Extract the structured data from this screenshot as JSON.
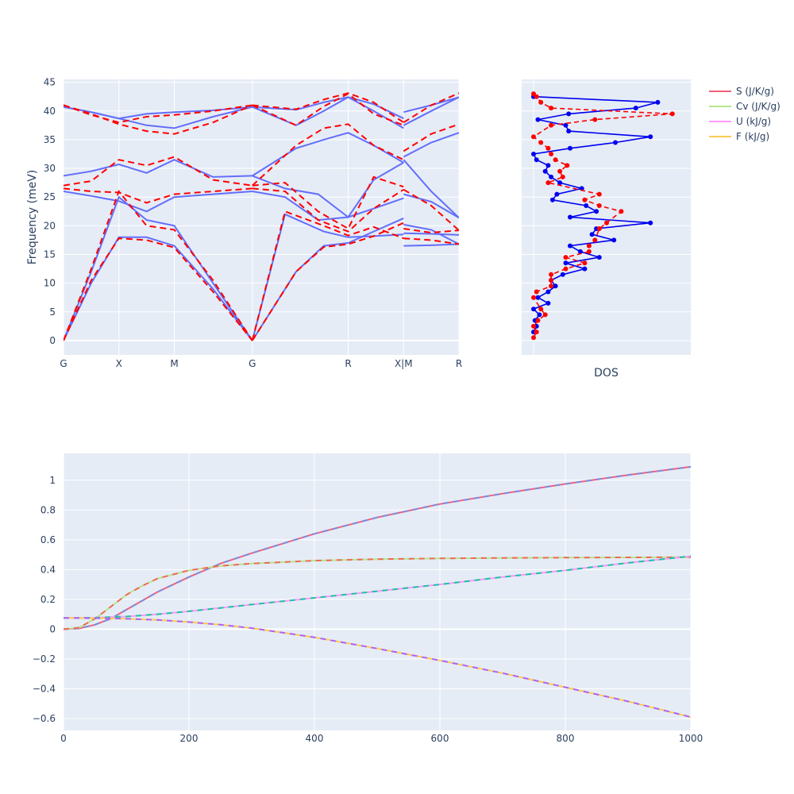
{
  "chart_data": [
    {
      "id": "bands",
      "type": "line",
      "ylabel": "Frequency (meV)",
      "xlabel": "",
      "ylim": [
        -2.5,
        45.5
      ],
      "yticks": [
        0,
        5,
        10,
        15,
        20,
        25,
        30,
        35,
        40,
        45
      ],
      "xticks": [
        {
          "label": "G",
          "x": 0
        },
        {
          "label": "X",
          "x": 1
        },
        {
          "label": "M",
          "x": 2
        },
        {
          "label": "G",
          "x": 3.41
        },
        {
          "label": "R",
          "x": 5.14
        },
        {
          "label": "X|M",
          "x": 6.14
        },
        {
          "label": "R",
          "x": 7.14
        }
      ],
      "grid": true,
      "series_styles": [
        {
          "color": "#636efa",
          "dash": "solid"
        },
        {
          "color": "#ff0000",
          "dash": "dashed"
        }
      ],
      "series": [
        {
          "x": [
            0,
            0.5,
            1,
            1.5,
            2,
            2.7,
            3.41
          ],
          "y": [
            0,
            10,
            18,
            18,
            16.5,
            9,
            0
          ]
        },
        {
          "x": [
            0,
            0.5,
            1,
            1.5,
            2,
            2.7,
            3.41
          ],
          "y": [
            0,
            12,
            25,
            21,
            20,
            10,
            0
          ]
        },
        {
          "x": [
            3.41,
            4.2,
            4.7,
            5.14,
            5.6,
            6.14
          ],
          "y": [
            0,
            12,
            16.5,
            17,
            19,
            21.3
          ]
        },
        {
          "x": [
            3.41,
            4.0,
            4.7,
            5.14,
            5.6,
            6.14
          ],
          "y": [
            0,
            22,
            19,
            18,
            18.2,
            18.5
          ]
        },
        {
          "x": [
            0,
            0.5,
            1,
            1.5,
            2,
            2.7,
            3.41
          ],
          "y": [
            26,
            25.2,
            24.3,
            22.5,
            25,
            25.5,
            26
          ]
        },
        {
          "x": [
            0,
            0.5,
            1,
            1.5,
            2,
            2.7,
            3.41
          ],
          "y": [
            28.7,
            29.5,
            30.7,
            29.2,
            31.5,
            28.5,
            28.7
          ]
        },
        {
          "x": [
            3.41,
            4.0,
            4.6,
            5.14,
            5.6,
            6.14
          ],
          "y": [
            26,
            25,
            21,
            21.5,
            23,
            24.8
          ]
        },
        {
          "x": [
            3.41,
            4.0,
            4.6,
            5.14,
            5.6,
            6.14
          ],
          "y": [
            28.7,
            26.5,
            25.5,
            21.5,
            28,
            31
          ]
        },
        {
          "x": [
            3.41,
            4.2,
            4.7,
            5.14,
            5.6,
            6.14
          ],
          "y": [
            28.7,
            33.5,
            35,
            36.2,
            34,
            31
          ]
        },
        {
          "x": [
            0,
            0.5,
            1,
            1.5,
            2,
            2.7,
            3.41
          ],
          "y": [
            40.7,
            39.8,
            38.7,
            37.5,
            37,
            39,
            40.7
          ]
        },
        {
          "x": [
            0,
            0.5,
            1,
            1.5,
            2,
            2.7,
            3.41
          ],
          "y": [
            40.7,
            39.8,
            38.7,
            39.5,
            39.8,
            40.1,
            40.7
          ]
        },
        {
          "x": [
            3.41,
            4.2,
            4.7,
            5.14,
            5.6,
            6.14
          ],
          "y": [
            40.7,
            37.5,
            40,
            42.4,
            40,
            37
          ]
        },
        {
          "x": [
            3.41,
            4.2,
            4.7,
            5.14,
            5.6,
            6.14
          ],
          "y": [
            40.7,
            40.2,
            41.5,
            42.4,
            41.2,
            38.7
          ]
        },
        {
          "x": [
            6.14,
            6.64,
            7.14
          ],
          "y": [
            16.5,
            16.6,
            16.8
          ]
        },
        {
          "x": [
            6.14,
            6.64,
            7.14
          ],
          "y": [
            18.7,
            18.6,
            18.4
          ]
        },
        {
          "x": [
            6.14,
            6.64,
            7.14
          ],
          "y": [
            20.2,
            19.3,
            16.8
          ]
        },
        {
          "x": [
            6.14,
            6.64,
            7.14
          ],
          "y": [
            25.5,
            24.2,
            21.4
          ]
        },
        {
          "x": [
            6.14,
            6.64,
            7.14
          ],
          "y": [
            31.5,
            26,
            21.4
          ]
        },
        {
          "x": [
            6.14,
            6.64,
            7.14
          ],
          "y": [
            32,
            34.5,
            36.2
          ]
        },
        {
          "x": [
            6.14,
            6.64,
            7.14
          ],
          "y": [
            37.5,
            40,
            42.4
          ]
        },
        {
          "x": [
            6.14,
            6.64,
            7.14
          ],
          "y": [
            39.8,
            41,
            42.4
          ]
        },
        {
          "x": [
            0,
            0.5,
            1,
            1.5,
            2,
            2.7,
            3.41
          ],
          "y": [
            0,
            10.5,
            17.8,
            17.5,
            16.2,
            8.5,
            0
          ],
          "series": 1
        },
        {
          "x": [
            0,
            0.5,
            1,
            1.5,
            2,
            2.7,
            3.41
          ],
          "y": [
            0,
            12.5,
            26,
            20,
            19.3,
            10.5,
            0
          ],
          "series": 1
        },
        {
          "x": [
            3.41,
            4.2,
            4.7,
            5.14,
            5.6,
            6.14
          ],
          "y": [
            0,
            12,
            16.3,
            16.8,
            18.2,
            20.5
          ],
          "series": 1
        },
        {
          "x": [
            3.41,
            4.0,
            4.7,
            5.14,
            5.6,
            6.14
          ],
          "y": [
            0,
            22.5,
            20,
            18.3,
            19.8,
            17.8
          ],
          "series": 1
        },
        {
          "x": [
            0,
            0.5,
            1,
            1.5,
            2,
            2.7,
            3.41
          ],
          "y": [
            26.5,
            26,
            25.8,
            24,
            25.5,
            26,
            26.5
          ],
          "series": 1
        },
        {
          "x": [
            0,
            0.5,
            1,
            1.5,
            2,
            2.7,
            3.41
          ],
          "y": [
            27,
            27.8,
            31.5,
            30.5,
            32,
            28,
            27
          ],
          "series": 1
        },
        {
          "x": [
            3.41,
            4.0,
            4.6,
            5.14,
            5.6,
            6.14
          ],
          "y": [
            26.5,
            26,
            21,
            19,
            23,
            26.3
          ],
          "series": 1
        },
        {
          "x": [
            3.41,
            4.0,
            4.6,
            5.14,
            5.6,
            6.14
          ],
          "y": [
            27,
            27.5,
            22.5,
            19.5,
            28.5,
            26.8
          ],
          "series": 1
        },
        {
          "x": [
            3.41,
            4.2,
            4.7,
            5.14,
            5.6,
            6.14
          ],
          "y": [
            27,
            34,
            37,
            37.7,
            34,
            31.5
          ],
          "series": 1
        },
        {
          "x": [
            0,
            0.5,
            1,
            1.5,
            2,
            2.7,
            3.41
          ],
          "y": [
            41,
            39.5,
            37.7,
            36.5,
            36,
            38,
            41
          ],
          "series": 1
        },
        {
          "x": [
            0,
            0.5,
            1,
            1.5,
            2,
            2.7,
            3.41
          ],
          "y": [
            41,
            39.3,
            38,
            39,
            39.3,
            40,
            41
          ],
          "series": 1
        },
        {
          "x": [
            3.41,
            4.2,
            4.7,
            5.14,
            5.6,
            6.14
          ],
          "y": [
            41,
            37.5,
            40.8,
            43,
            39.5,
            37.5
          ],
          "series": 1
        },
        {
          "x": [
            3.41,
            4.2,
            4.7,
            5.14,
            5.6,
            6.14
          ],
          "y": [
            41,
            40.3,
            42,
            43.1,
            41.5,
            38
          ],
          "series": 1
        },
        {
          "x": [
            6.14,
            6.64,
            7.14
          ],
          "y": [
            17.8,
            17.5,
            16.8
          ],
          "series": 1
        },
        {
          "x": [
            6.14,
            6.64,
            7.14
          ],
          "y": [
            19.5,
            18.8,
            19.2
          ],
          "series": 1
        },
        {
          "x": [
            6.14,
            6.64,
            7.14
          ],
          "y": [
            26.3,
            23.5,
            19.2
          ],
          "series": 1
        },
        {
          "x": [
            6.14,
            6.64,
            7.14
          ],
          "y": [
            33,
            36,
            37.7
          ],
          "series": 1
        },
        {
          "x": [
            6.14,
            6.64,
            7.14
          ],
          "y": [
            38,
            41,
            43.1
          ],
          "series": 1
        }
      ]
    },
    {
      "id": "dos",
      "type": "line",
      "xlabel": "DOS",
      "ylim": [
        -2.5,
        45.5
      ],
      "markers": true,
      "series_styles": [
        {
          "color": "#0000ee",
          "dash": "solid"
        },
        {
          "color": "#ff0000",
          "dash": "dashed"
        }
      ],
      "series": [
        {
          "dos": [
            0.0,
            0.02,
            0.01,
            0.04,
            0.0,
            0.1,
            0.03,
            0.1,
            0.15,
            0.12,
            0.2,
            0.35,
            0.22,
            0.45,
            0.32,
            0.25,
            0.55,
            0.4,
            0.43,
            0.8,
            0.25,
            0.43,
            0.36,
            0.13,
            0.16,
            0.33,
            0.18,
            0.12,
            0.08,
            0.1,
            0.02,
            0.0,
            0.25,
            0.56,
            0.8,
            0.24,
            0.22,
            0.03,
            0.24,
            0.7,
            0.85,
            0.0
          ],
          "y": [
            1.5,
            2.5,
            3.5,
            4.5,
            5.5,
            6.5,
            7.5,
            8.5,
            9.5,
            10.5,
            11.5,
            12.5,
            13.5,
            14.5,
            15.5,
            16.5,
            17.5,
            18.5,
            19.5,
            20.5,
            21.5,
            22.5,
            23.5,
            24.5,
            25.5,
            26.5,
            27.5,
            28.5,
            29.5,
            30.5,
            31.5,
            32.5,
            33.5,
            34.5,
            35.5,
            36.5,
            37.5,
            38.5,
            39.5,
            40.5,
            41.5,
            42.5
          ]
        },
        {
          "dos": [
            0.0,
            0.02,
            0.0,
            0.03,
            0.08,
            0.05,
            0.0,
            0.02,
            0.12,
            0.12,
            0.12,
            0.22,
            0.35,
            0.22,
            0.38,
            0.38,
            0.42,
            0.45,
            0.5,
            0.6,
            0.45,
            0.35,
            0.45,
            0.1,
            0.2,
            0.18,
            0.23,
            0.15,
            0.12,
            0.1,
            0.05,
            0.0,
            0.12,
            0.42,
            0.95,
            0.12,
            0.05,
            0.02,
            0.0
          ],
          "y": [
            0.5,
            1.5,
            2.5,
            3.5,
            4.5,
            5.5,
            7.5,
            8.5,
            9.5,
            10.5,
            11.5,
            12.5,
            13.5,
            14.5,
            15.5,
            16.5,
            17.5,
            19.5,
            20.5,
            22.5,
            23.5,
            24.5,
            25.5,
            27.5,
            28.5,
            29.5,
            30.5,
            31.5,
            32.5,
            33.5,
            34.5,
            35.5,
            37.5,
            38.5,
            39.5,
            40.5,
            41.5,
            42.5,
            43.0
          ]
        }
      ]
    },
    {
      "id": "thermo",
      "type": "line",
      "xlim": [
        0,
        1000
      ],
      "ylim": [
        -0.68,
        1.18
      ],
      "xticks": [
        0,
        200,
        400,
        600,
        800,
        1000
      ],
      "yticks": [
        -0.6,
        -0.4,
        -0.2,
        0,
        0.2,
        0.4,
        0.6,
        0.8,
        1
      ],
      "grid": true,
      "legend_placement": "top-right",
      "series": [
        {
          "name": "S (J/K/g)",
          "color": "#f2607b",
          "overlay": "#7b8cdf",
          "x": [
            0,
            25,
            50,
            75,
            100,
            150,
            200,
            250,
            300,
            400,
            500,
            600,
            700,
            800,
            900,
            1000
          ],
          "y": [
            0,
            0.005,
            0.03,
            0.07,
            0.13,
            0.25,
            0.35,
            0.44,
            0.51,
            0.64,
            0.75,
            0.84,
            0.91,
            0.975,
            1.035,
            1.09
          ]
        },
        {
          "name": "Cv (J/K/g)",
          "color": "#b5e691",
          "overlay": "#ef6a55",
          "x": [
            0,
            25,
            50,
            75,
            100,
            125,
            150,
            200,
            250,
            300,
            400,
            500,
            600,
            700,
            800,
            900,
            1000
          ],
          "y": [
            0,
            0.01,
            0.07,
            0.15,
            0.23,
            0.29,
            0.34,
            0.395,
            0.425,
            0.44,
            0.46,
            0.47,
            0.475,
            0.478,
            0.48,
            0.482,
            0.483
          ]
        },
        {
          "name": "U (kJ/g)",
          "color": "#ff97ff",
          "overlay": "#1cc3a0",
          "x": [
            0,
            50,
            100,
            150,
            200,
            300,
            400,
            500,
            600,
            700,
            800,
            900,
            1000
          ],
          "y": [
            0.075,
            0.077,
            0.085,
            0.1,
            0.12,
            0.165,
            0.21,
            0.255,
            0.3,
            0.35,
            0.395,
            0.445,
            0.49
          ]
        },
        {
          "name": "F (kJ/g)",
          "color": "#fecb52",
          "overlay": "#ab63fa",
          "x": [
            0,
            50,
            100,
            150,
            200,
            250,
            300,
            400,
            500,
            600,
            700,
            800,
            900,
            1000
          ],
          "y": [
            0.075,
            0.074,
            0.07,
            0.062,
            0.048,
            0.03,
            0.007,
            -0.055,
            -0.13,
            -0.21,
            -0.295,
            -0.39,
            -0.485,
            -0.59
          ]
        }
      ]
    }
  ]
}
